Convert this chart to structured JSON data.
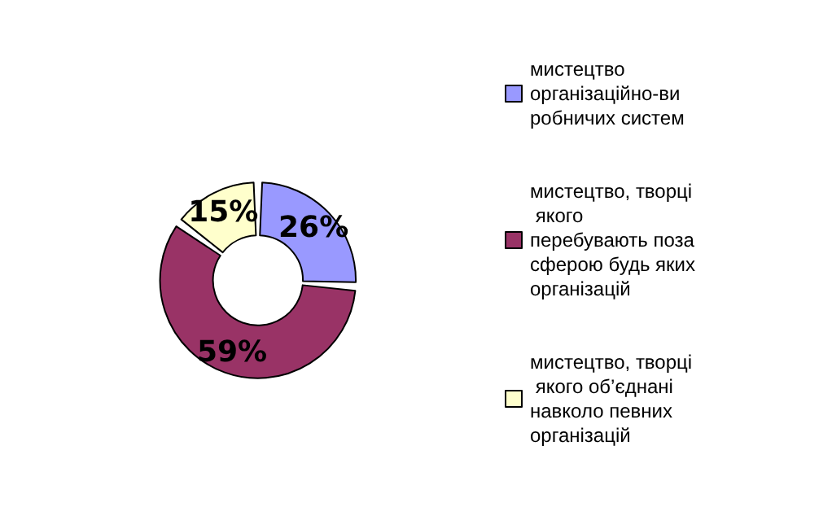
{
  "chart_data": {
    "type": "donut",
    "categories": [
      "мистецтво організаційно-виробничих систем",
      "мистецтво, творці якого перебувають поза сферою будь яких організацій",
      "мистецтво, творці якого об’єднані навколо певних організацій"
    ],
    "values": [
      26,
      59,
      15
    ],
    "colors": [
      "#9999ff",
      "#993366",
      "#ffffcc"
    ],
    "value_labels": [
      "26%",
      "59%",
      "15%"
    ],
    "legend": "right"
  }
}
